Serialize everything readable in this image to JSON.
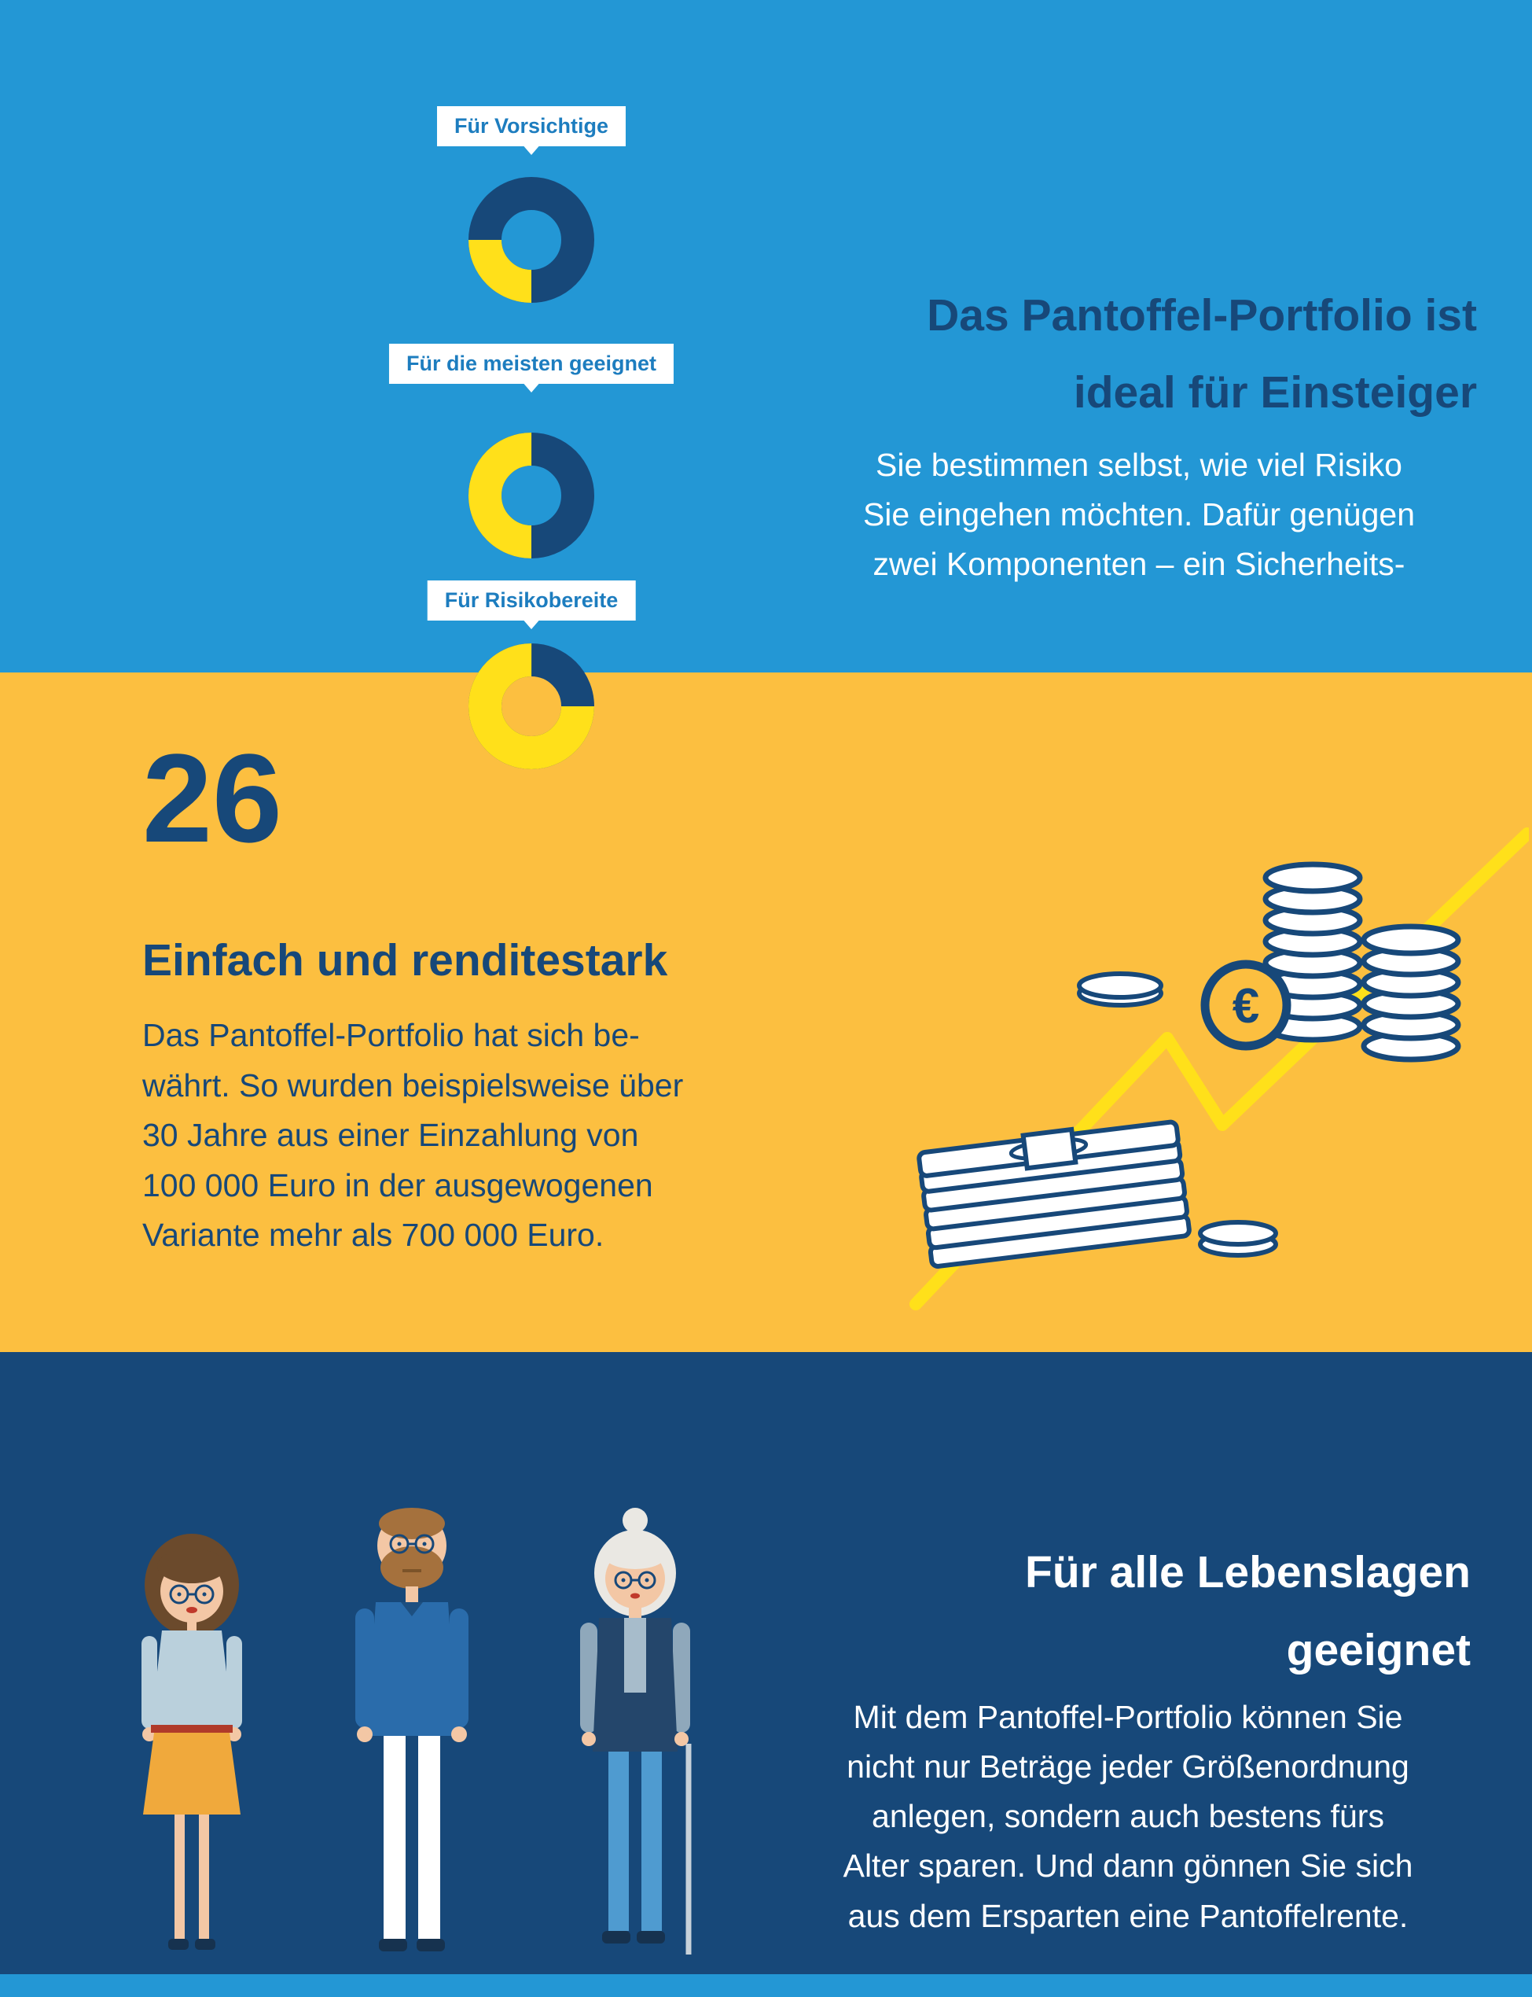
{
  "colors": {
    "top_background": "#2397d5",
    "middle_background": "#fcbf40",
    "bottom_background": "#174879",
    "navy": "#174879",
    "bright_yellow": "#ffe01a",
    "white": "#ffffff",
    "label_blue": "#1d7dbf"
  },
  "chart_data": [
    {
      "type": "pie",
      "donut": true,
      "title": "Für Vorsichtige",
      "slices": [
        {
          "value": 25,
          "color": "#ffe01a"
        },
        {
          "value": 75,
          "color": "#174879"
        }
      ]
    },
    {
      "type": "pie",
      "donut": true,
      "title": "Für die meisten geeignet",
      "slices": [
        {
          "value": 50,
          "color": "#ffe01a"
        },
        {
          "value": 50,
          "color": "#174879"
        }
      ]
    },
    {
      "type": "pie",
      "donut": true,
      "title": "Für Risikobereite",
      "slices": [
        {
          "value": 75,
          "color": "#ffe01a"
        },
        {
          "value": 25,
          "color": "#174879"
        }
      ]
    }
  ],
  "top_section": {
    "heading": [
      "Das Pantoffel-Portfolio ist",
      "ideal für Einsteiger"
    ],
    "body": [
      "Sie bestimmen selbst, wie viel Risiko",
      "Sie eingehen möchten. Dafür genügen",
      "zwei Komponenten – ein Sicherheits-"
    ]
  },
  "middle_section": {
    "number": "26",
    "heading": "Einfach und renditestark",
    "body": [
      "Das Pantoffel-Portfolio hat sich be-",
      "währt. So wurden beispielsweise über",
      "30 Jahre aus einer Einzahlung von",
      "100 000 Euro in der ausgewogenen",
      "Variante mehr als 700 000 Euro."
    ],
    "euro_symbol": "€"
  },
  "bottom_section": {
    "heading": [
      "Für alle Lebenslagen",
      "geeignet"
    ],
    "body": [
      "Mit dem Pantoffel-Portfolio können Sie",
      "nicht nur Beträge jeder Größenordnung",
      "anlegen, sondern auch bestens fürs",
      "Alter sparen. Und dann gönnen Sie sich",
      "aus dem Ersparten eine Pantoffelrente."
    ]
  }
}
